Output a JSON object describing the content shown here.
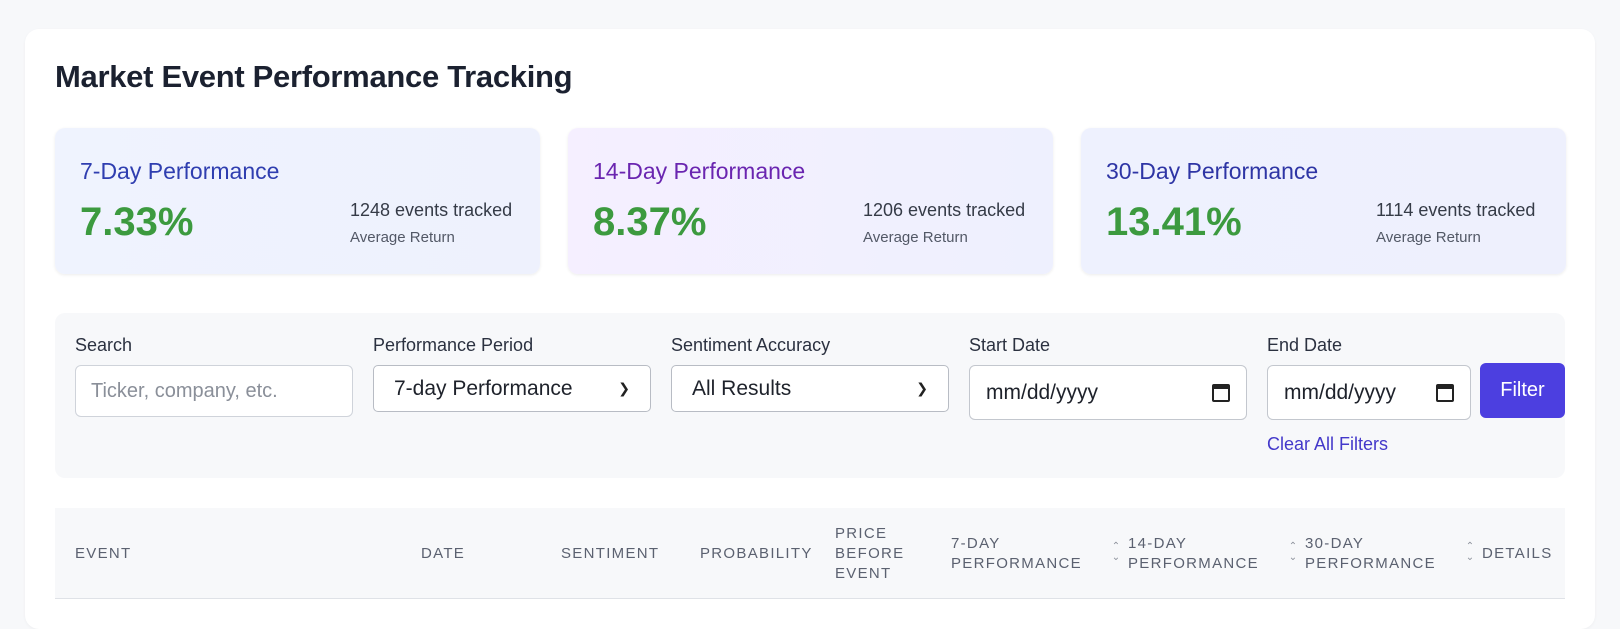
{
  "page": {
    "title": "Market Event Performance Tracking"
  },
  "stats": [
    {
      "title": "7-Day Performance",
      "value": "7.33%",
      "count": "1248 events tracked",
      "sub": "Average Return"
    },
    {
      "title": "14-Day Performance",
      "value": "8.37%",
      "count": "1206 events tracked",
      "sub": "Average Return"
    },
    {
      "title": "30-Day Performance",
      "value": "13.41%",
      "count": "1114 events tracked",
      "sub": "Average Return"
    }
  ],
  "filters": {
    "search": {
      "label": "Search",
      "placeholder": "Ticker, company, etc."
    },
    "period": {
      "label": "Performance Period",
      "value": "7-day Performance"
    },
    "accuracy": {
      "label": "Sentiment Accuracy",
      "value": "All Results"
    },
    "start_date": {
      "label": "Start Date",
      "value": "mm/dd/yyyy"
    },
    "end_date": {
      "label": "End Date",
      "value": "mm/dd/yyyy"
    },
    "filter_button": "Filter",
    "clear_link": "Clear All Filters"
  },
  "table": {
    "headers": {
      "event": "Event",
      "date": "Date",
      "sentiment": "Sentiment",
      "probability": "Probability",
      "price_l1": "Price",
      "price_l2": "Before",
      "price_l3": "Event",
      "perf7_l1": "7-Day",
      "perf7_l2": "Performance",
      "perf14_l1": "14-Day",
      "perf14_l2": "Performance",
      "perf30_l1": "30-Day",
      "perf30_l2": "Performance",
      "details": "Details"
    }
  },
  "colors": {
    "accent": "#4c3fe0",
    "positive": "#3c9a3f",
    "link": "#4338ca"
  }
}
